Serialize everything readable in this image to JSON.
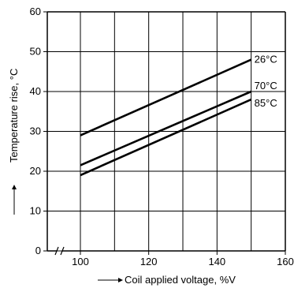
{
  "chart_data": {
    "type": "line",
    "title": "",
    "xlabel": "Coil applied voltage, %V",
    "ylabel": "Temperature rise, °C",
    "xlim": [
      100,
      160
    ],
    "ylim": [
      0,
      60
    ],
    "x_axis_break": true,
    "grid": true,
    "legend": "inline labels at right end of each line",
    "x_ticks": [
      "100",
      "120",
      "140",
      "160"
    ],
    "y_ticks": [
      "0",
      "10",
      "20",
      "30",
      "40",
      "50",
      "60"
    ],
    "series": [
      {
        "name": "26°C",
        "x": [
          100,
          150
        ],
        "y": [
          29,
          48
        ]
      },
      {
        "name": "70°C",
        "x": [
          100,
          150
        ],
        "y": [
          21.5,
          40
        ]
      },
      {
        "name": "85°C",
        "x": [
          100,
          150
        ],
        "y": [
          19,
          38
        ]
      }
    ],
    "colors": {
      "line": "#000000",
      "grid": "#000000",
      "background": "#ffffff"
    }
  }
}
